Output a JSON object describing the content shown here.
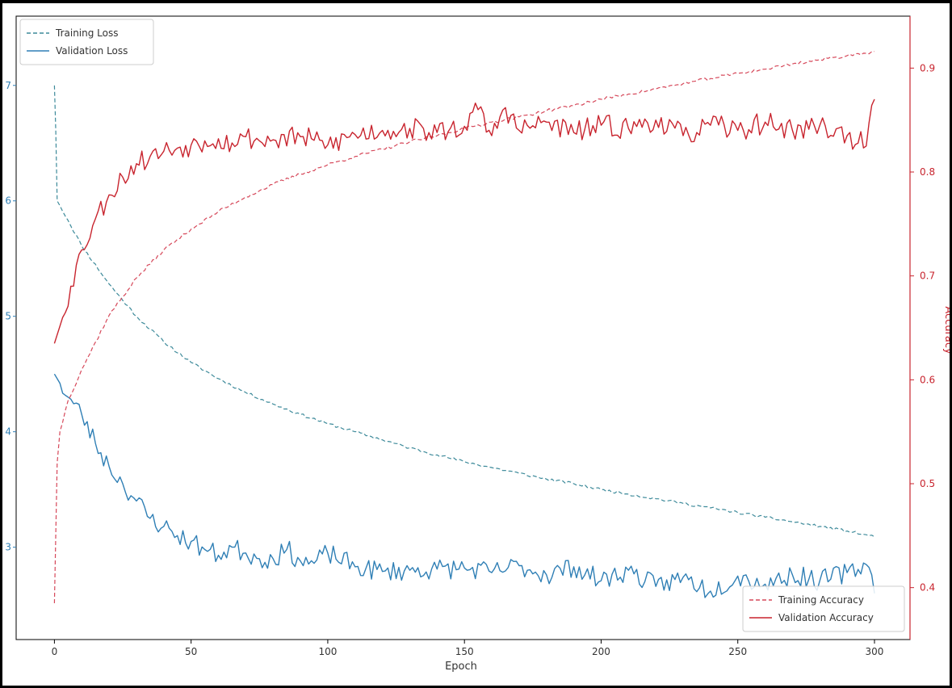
{
  "chart_data": {
    "type": "line",
    "title": "",
    "xlabel": "Epoch",
    "ylabel_left": "",
    "ylabel_right": "Accuracy",
    "xlim": [
      -14,
      313
    ],
    "ylim_left": [
      0.22,
      0.76
    ],
    "ylim_right": [
      0.35,
      0.95
    ],
    "x_ticks": [
      0,
      50,
      100,
      150,
      200,
      250,
      300
    ],
    "x_tick_labels": [
      "0",
      "50",
      "100",
      "150",
      "200",
      "250",
      "300"
    ],
    "y_left_ticks": [
      0.3,
      0.4,
      0.5,
      0.6,
      0.7
    ],
    "y_left_tick_labels": [
      "3",
      "4",
      "5",
      "6",
      "7"
    ],
    "y_right_ticks": [
      0.4,
      0.5,
      0.6,
      0.7,
      0.8,
      0.9
    ],
    "y_right_tick_labels": [
      "0.4",
      "0.5",
      "0.6",
      "0.7",
      "0.8",
      "0.9"
    ],
    "grid": false,
    "colors": {
      "loss": "#2f7fb5",
      "train_loss": "#3d8a9a",
      "accuracy": "#c8242e",
      "train_accuracy": "#d6485a",
      "right_axis": "#c8242e",
      "left_axis": "#2f7fb5"
    },
    "legends": [
      {
        "placement": "top-left",
        "entries": [
          "Training Loss",
          "Validation Loss"
        ]
      },
      {
        "placement": "bottom-right",
        "entries": [
          "Training Accuracy",
          "Validation Accuracy"
        ]
      }
    ],
    "series": [
      {
        "name": "Training Loss",
        "axis": "left",
        "style": "dashed",
        "x": [
          0,
          0.5,
          1,
          5,
          10,
          20,
          30,
          40,
          50,
          60,
          70,
          80,
          90,
          100,
          110,
          120,
          130,
          140,
          150,
          160,
          170,
          180,
          190,
          200,
          210,
          220,
          230,
          240,
          250,
          260,
          270,
          280,
          290,
          300
        ],
        "y": [
          0.7,
          0.66,
          0.6,
          0.583,
          0.561,
          0.528,
          0.5,
          0.478,
          0.46,
          0.446,
          0.434,
          0.424,
          0.415,
          0.407,
          0.4,
          0.393,
          0.386,
          0.38,
          0.374,
          0.369,
          0.364,
          0.359,
          0.355,
          0.35,
          0.346,
          0.342,
          0.338,
          0.334,
          0.33,
          0.326,
          0.322,
          0.318,
          0.314,
          0.309
        ]
      },
      {
        "name": "Validation Loss",
        "axis": "left",
        "style": "solid",
        "x": [
          0,
          5,
          10,
          15,
          20,
          25,
          30,
          35,
          40,
          45,
          50,
          55,
          60,
          65,
          70,
          75,
          80,
          85,
          90,
          95,
          100,
          110,
          120,
          130,
          140,
          150,
          160,
          170,
          180,
          190,
          200,
          210,
          220,
          230,
          240,
          250,
          260,
          270,
          280,
          290,
          297,
          299,
          300
        ],
        "y": [
          0.45,
          0.43,
          0.415,
          0.39,
          0.37,
          0.355,
          0.34,
          0.325,
          0.318,
          0.31,
          0.305,
          0.298,
          0.293,
          0.3,
          0.295,
          0.29,
          0.29,
          0.298,
          0.288,
          0.286,
          0.295,
          0.283,
          0.279,
          0.28,
          0.281,
          0.282,
          0.278,
          0.284,
          0.276,
          0.283,
          0.271,
          0.28,
          0.266,
          0.274,
          0.262,
          0.275,
          0.268,
          0.276,
          0.271,
          0.278,
          0.285,
          0.276,
          0.26
        ]
      },
      {
        "name": "Training Accuracy",
        "axis": "right",
        "style": "dashed",
        "x": [
          0,
          1,
          2,
          5,
          10,
          20,
          30,
          40,
          50,
          60,
          70,
          80,
          90,
          100,
          110,
          120,
          130,
          140,
          150,
          160,
          170,
          180,
          190,
          200,
          210,
          220,
          230,
          240,
          250,
          260,
          270,
          280,
          290,
          300
        ],
        "y": [
          0.385,
          0.52,
          0.55,
          0.58,
          0.61,
          0.662,
          0.698,
          0.725,
          0.745,
          0.762,
          0.776,
          0.788,
          0.798,
          0.807,
          0.815,
          0.822,
          0.829,
          0.835,
          0.842,
          0.848,
          0.853,
          0.859,
          0.864,
          0.87,
          0.875,
          0.88,
          0.885,
          0.89,
          0.895,
          0.899,
          0.904,
          0.908,
          0.912,
          0.916
        ]
      },
      {
        "name": "Validation Accuracy",
        "axis": "right",
        "style": "solid",
        "x": [
          0,
          3,
          6,
          10,
          15,
          20,
          25,
          30,
          35,
          40,
          45,
          50,
          55,
          60,
          65,
          70,
          75,
          80,
          90,
          100,
          110,
          120,
          130,
          140,
          150,
          155,
          160,
          165,
          170,
          180,
          190,
          200,
          210,
          220,
          230,
          240,
          250,
          260,
          270,
          280,
          290,
          297,
          300
        ],
        "y": [
          0.635,
          0.66,
          0.69,
          0.725,
          0.755,
          0.778,
          0.795,
          0.808,
          0.815,
          0.82,
          0.823,
          0.826,
          0.83,
          0.832,
          0.828,
          0.834,
          0.83,
          0.831,
          0.834,
          0.826,
          0.836,
          0.84,
          0.842,
          0.838,
          0.844,
          0.86,
          0.835,
          0.862,
          0.84,
          0.848,
          0.838,
          0.845,
          0.842,
          0.85,
          0.835,
          0.845,
          0.84,
          0.848,
          0.84,
          0.845,
          0.835,
          0.825,
          0.87
        ]
      }
    ]
  }
}
